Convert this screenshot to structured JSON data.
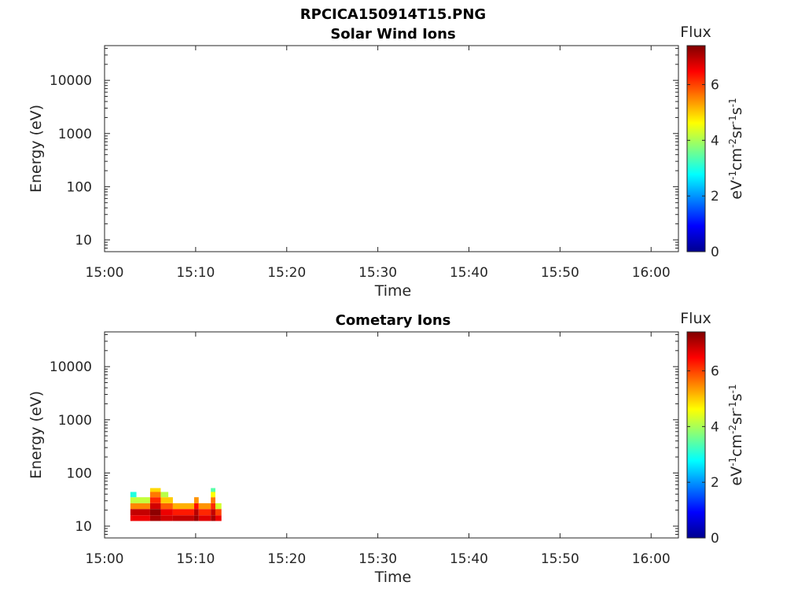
{
  "figure": {
    "title": "RPCICA150914T15.PNG"
  },
  "chart_data": [
    {
      "type": "heatmap",
      "title": "Solar Wind Ions",
      "xlabel": "Time",
      "ylabel": "Energy (eV)",
      "x_ticks": [
        "15:00",
        "15:10",
        "15:20",
        "15:30",
        "15:40",
        "15:50",
        "16:00"
      ],
      "xlim": [
        "15:00",
        "16:03"
      ],
      "y_scale": "log",
      "y_ticks": [
        10,
        100,
        1000,
        10000
      ],
      "y_tick_labels": [
        "10",
        "100",
        "1000",
        "10000"
      ],
      "ylim": [
        6,
        45000
      ],
      "colorbar": {
        "label": "Flux",
        "units": "eV-1cm-2sr-1s-1",
        "ticks": [
          0,
          2,
          4,
          6
        ],
        "range": [
          0,
          7.4
        ],
        "colormap": "jet"
      },
      "cells": []
    },
    {
      "type": "heatmap",
      "title": "Cometary Ions",
      "xlabel": "Time",
      "ylabel": "Energy (eV)",
      "x_ticks": [
        "15:00",
        "15:10",
        "15:20",
        "15:30",
        "15:40",
        "15:50",
        "16:00"
      ],
      "xlim": [
        "15:00",
        "16:03"
      ],
      "y_scale": "log",
      "y_ticks": [
        10,
        100,
        1000,
        10000
      ],
      "y_tick_labels": [
        "10",
        "100",
        "1000",
        "10000"
      ],
      "ylim": [
        6,
        45000
      ],
      "colorbar": {
        "label": "Flux",
        "units": "eV-1cm-2sr-1s-1",
        "ticks": [
          0,
          2,
          4,
          6
        ],
        "range": [
          0,
          7.4
        ],
        "colormap": "jet"
      },
      "cells": [
        {
          "t0": "15:02:50",
          "t1": "15:05:00",
          "e0": 12.5,
          "e1": 16,
          "v": 6.6
        },
        {
          "t0": "15:02:50",
          "t1": "15:05:00",
          "e0": 16,
          "e1": 21,
          "v": 6.9
        },
        {
          "t0": "15:02:50",
          "t1": "15:05:00",
          "e0": 21,
          "e1": 27,
          "v": 5.5
        },
        {
          "t0": "15:02:50",
          "t1": "15:05:00",
          "e0": 27,
          "e1": 35,
          "v": 4.2
        },
        {
          "t0": "15:02:50",
          "t1": "15:03:30",
          "e0": 35,
          "e1": 44,
          "v": 3.0
        },
        {
          "t0": "15:05:00",
          "t1": "15:06:10",
          "e0": 12.5,
          "e1": 16,
          "v": 7.1
        },
        {
          "t0": "15:05:00",
          "t1": "15:06:10",
          "e0": 16,
          "e1": 21,
          "v": 7.3
        },
        {
          "t0": "15:05:00",
          "t1": "15:06:10",
          "e0": 21,
          "e1": 27,
          "v": 6.8
        },
        {
          "t0": "15:05:00",
          "t1": "15:06:10",
          "e0": 27,
          "e1": 35,
          "v": 6.2
        },
        {
          "t0": "15:05:00",
          "t1": "15:06:10",
          "e0": 35,
          "e1": 44,
          "v": 5.6
        },
        {
          "t0": "15:05:00",
          "t1": "15:06:10",
          "e0": 44,
          "e1": 52,
          "v": 4.9
        },
        {
          "t0": "15:06:10",
          "t1": "15:07:30",
          "e0": 12.5,
          "e1": 16,
          "v": 6.8
        },
        {
          "t0": "15:06:10",
          "t1": "15:07:30",
          "e0": 16,
          "e1": 21,
          "v": 6.6
        },
        {
          "t0": "15:06:10",
          "t1": "15:07:30",
          "e0": 21,
          "e1": 27,
          "v": 5.8
        },
        {
          "t0": "15:06:10",
          "t1": "15:07:30",
          "e0": 27,
          "e1": 35,
          "v": 5.0
        },
        {
          "t0": "15:06:10",
          "t1": "15:07:00",
          "e0": 35,
          "e1": 44,
          "v": 4.1
        },
        {
          "t0": "15:07:30",
          "t1": "15:09:50",
          "e0": 12.5,
          "e1": 16,
          "v": 6.9
        },
        {
          "t0": "15:07:30",
          "t1": "15:09:50",
          "e0": 16,
          "e1": 21,
          "v": 6.3
        },
        {
          "t0": "15:07:30",
          "t1": "15:09:50",
          "e0": 21,
          "e1": 27,
          "v": 5.2
        },
        {
          "t0": "15:09:50",
          "t1": "15:10:20",
          "e0": 12.5,
          "e1": 16,
          "v": 7.2
        },
        {
          "t0": "15:09:50",
          "t1": "15:10:20",
          "e0": 16,
          "e1": 21,
          "v": 7.0
        },
        {
          "t0": "15:09:50",
          "t1": "15:10:20",
          "e0": 21,
          "e1": 27,
          "v": 6.4
        },
        {
          "t0": "15:09:50",
          "t1": "15:10:20",
          "e0": 27,
          "e1": 35,
          "v": 5.4
        },
        {
          "t0": "15:10:20",
          "t1": "15:11:40",
          "e0": 12.5,
          "e1": 16,
          "v": 6.7
        },
        {
          "t0": "15:10:20",
          "t1": "15:11:40",
          "e0": 16,
          "e1": 21,
          "v": 6.2
        },
        {
          "t0": "15:10:20",
          "t1": "15:11:40",
          "e0": 21,
          "e1": 27,
          "v": 5.4
        },
        {
          "t0": "15:11:40",
          "t1": "15:12:10",
          "e0": 12.5,
          "e1": 16,
          "v": 7.1
        },
        {
          "t0": "15:11:40",
          "t1": "15:12:10",
          "e0": 16,
          "e1": 21,
          "v": 6.9
        },
        {
          "t0": "15:11:40",
          "t1": "15:12:10",
          "e0": 21,
          "e1": 27,
          "v": 6.2
        },
        {
          "t0": "15:11:40",
          "t1": "15:12:10",
          "e0": 27,
          "e1": 35,
          "v": 5.6
        },
        {
          "t0": "15:11:40",
          "t1": "15:12:10",
          "e0": 35,
          "e1": 44,
          "v": 4.6
        },
        {
          "t0": "15:11:40",
          "t1": "15:12:10",
          "e0": 44,
          "e1": 52,
          "v": 3.4
        },
        {
          "t0": "15:12:10",
          "t1": "15:12:50",
          "e0": 12.5,
          "e1": 16,
          "v": 6.6
        },
        {
          "t0": "15:12:10",
          "t1": "15:12:50",
          "e0": 16,
          "e1": 21,
          "v": 6.0
        },
        {
          "t0": "15:12:10",
          "t1": "15:12:50",
          "e0": 21,
          "e1": 27,
          "v": 4.3
        }
      ]
    }
  ]
}
